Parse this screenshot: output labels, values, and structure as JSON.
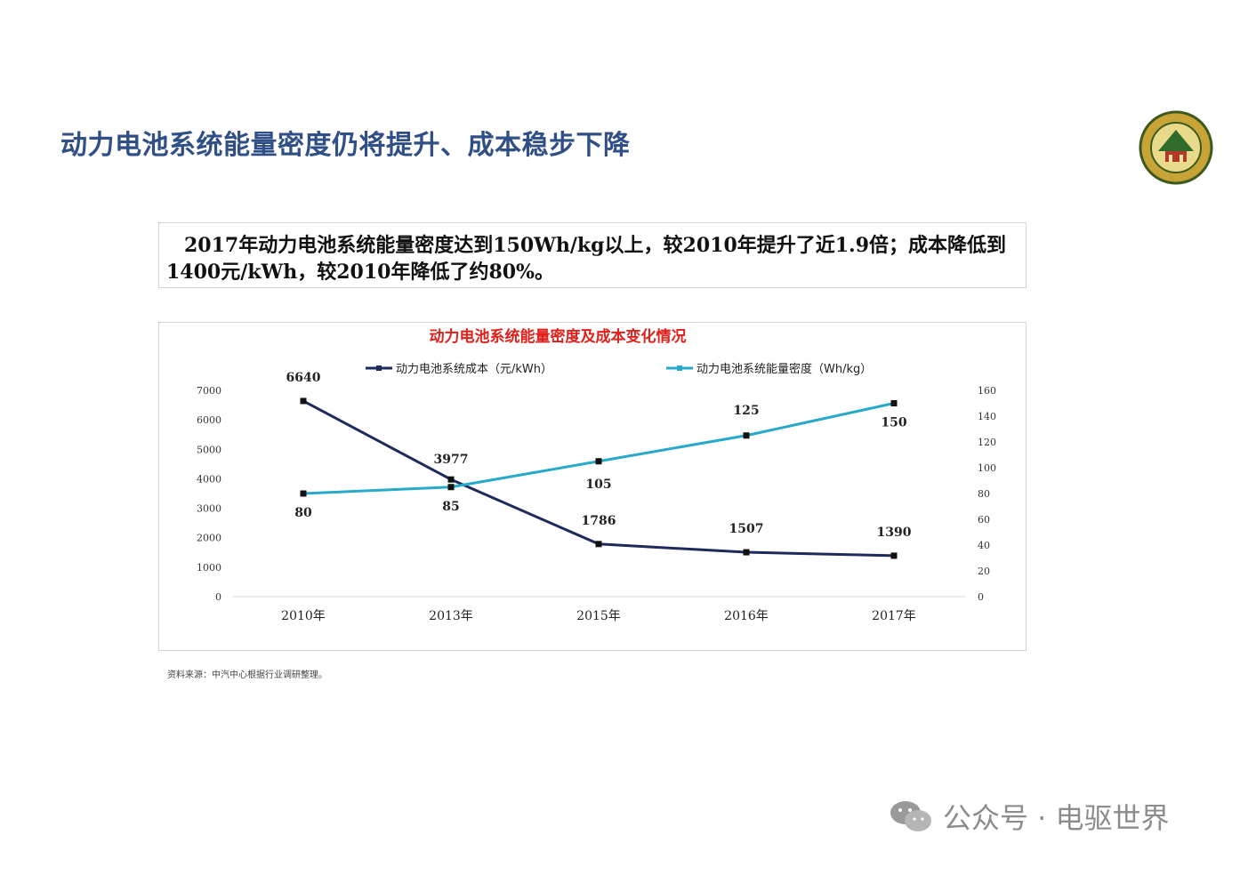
{
  "slide": {
    "title": "动力电池系统能量密度仍将提升、成本稳步下降",
    "summary": "2017年动力电池系统能量密度达到150Wh/kg以上，较2010年提升了近1.9倍；成本降低到1400元/kWh，较2010年降低了约80%。",
    "source": "资料来源：中汽中心根据行业调研整理。",
    "watermark": "公众号 · 电驱世界"
  },
  "colors": {
    "title": "#2f4f86",
    "chart_title": "#e0201b",
    "cost_series": "#1f2a5c",
    "density_series": "#27a9c9"
  },
  "chart_data": {
    "type": "line",
    "title": "动力电池系统能量密度及成本变化情况",
    "categories": [
      "2010年",
      "2013年",
      "2015年",
      "2016年",
      "2017年"
    ],
    "series": [
      {
        "name": "动力电池系统成本（元/kWh）",
        "axis": "left",
        "values": [
          6640,
          3977,
          1786,
          1507,
          1390
        ]
      },
      {
        "name": "动力电池系统能量密度（Wh/kg）",
        "axis": "right",
        "values": [
          80,
          85,
          105,
          125,
          150
        ]
      }
    ],
    "y_left": {
      "ylim": [
        0,
        7000
      ],
      "ticks": [
        0,
        1000,
        2000,
        3000,
        4000,
        5000,
        6000,
        7000
      ]
    },
    "y_right": {
      "ylim": [
        0,
        160
      ],
      "ticks": [
        0,
        20,
        40,
        60,
        80,
        100,
        120,
        140,
        160
      ]
    },
    "grid": false,
    "legend": "top"
  }
}
